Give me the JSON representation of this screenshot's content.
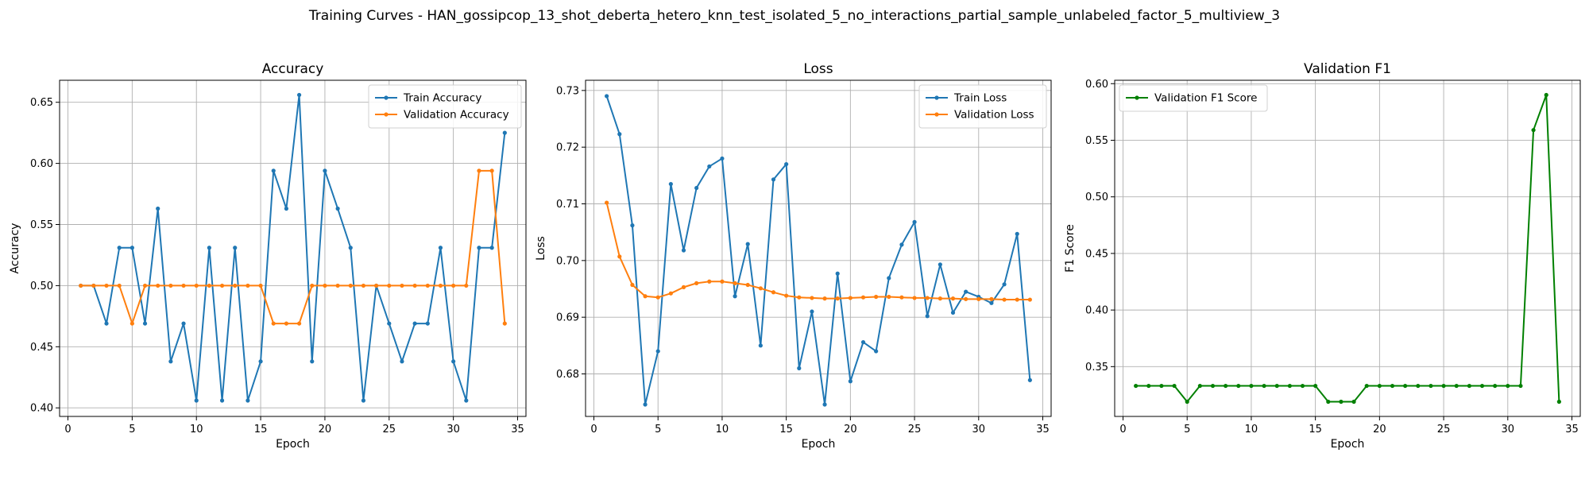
{
  "figure": {
    "suptitle": "Training Curves - HAN_gossipcop_13_shot_deberta_hetero_knn_test_isolated_5_no_interactions_partial_sample_unlabeled_factor_5_multiview_3"
  },
  "colors": {
    "blue": "#1f77b4",
    "orange": "#ff7f0e",
    "green": "#008000",
    "grid": "#b0b0b0"
  },
  "chart_data": [
    {
      "id": "accuracy",
      "type": "line",
      "title": "Accuracy",
      "xlabel": "Epoch",
      "ylabel": "Accuracy",
      "xlim": [
        -0.65,
        35.65
      ],
      "ylim": [
        0.393,
        0.668
      ],
      "xticks": [
        0,
        5,
        10,
        15,
        20,
        25,
        30,
        35
      ],
      "yticks": [
        0.4,
        0.45,
        0.5,
        0.55,
        0.6,
        0.65
      ],
      "ytick_labels": [
        "0.40",
        "0.45",
        "0.50",
        "0.55",
        "0.60",
        "0.65"
      ],
      "grid": true,
      "legend": "upper-right",
      "x": [
        1,
        2,
        3,
        4,
        5,
        6,
        7,
        8,
        9,
        10,
        11,
        12,
        13,
        14,
        15,
        16,
        17,
        18,
        19,
        20,
        21,
        22,
        23,
        24,
        25,
        26,
        27,
        28,
        29,
        30,
        31,
        32,
        33,
        34
      ],
      "series": [
        {
          "name": "Train Accuracy",
          "color": "#1f77b4",
          "values": [
            0.5,
            0.5,
            0.469,
            0.531,
            0.531,
            0.469,
            0.563,
            0.438,
            0.469,
            0.406,
            0.531,
            0.406,
            0.531,
            0.406,
            0.438,
            0.594,
            0.563,
            0.656,
            0.438,
            0.594,
            0.563,
            0.531,
            0.406,
            0.5,
            0.469,
            0.438,
            0.469,
            0.469,
            0.531,
            0.438,
            0.406,
            0.531,
            0.531,
            0.625
          ]
        },
        {
          "name": "Validation Accuracy",
          "color": "#ff7f0e",
          "values": [
            0.5,
            0.5,
            0.5,
            0.5,
            0.469,
            0.5,
            0.5,
            0.5,
            0.5,
            0.5,
            0.5,
            0.5,
            0.5,
            0.5,
            0.5,
            0.469,
            0.469,
            0.469,
            0.5,
            0.5,
            0.5,
            0.5,
            0.5,
            0.5,
            0.5,
            0.5,
            0.5,
            0.5,
            0.5,
            0.5,
            0.5,
            0.594,
            0.594,
            0.469
          ]
        }
      ]
    },
    {
      "id": "loss",
      "type": "line",
      "title": "Loss",
      "xlabel": "Epoch",
      "ylabel": "Loss",
      "xlim": [
        -0.65,
        35.65
      ],
      "ylim": [
        0.6725,
        0.7318
      ],
      "xticks": [
        0,
        5,
        10,
        15,
        20,
        25,
        30,
        35
      ],
      "yticks": [
        0.68,
        0.69,
        0.7,
        0.71,
        0.72,
        0.73
      ],
      "ytick_labels": [
        "0.68",
        "0.69",
        "0.70",
        "0.71",
        "0.72",
        "0.73"
      ],
      "grid": true,
      "legend": "upper-right",
      "x": [
        1,
        2,
        3,
        4,
        5,
        6,
        7,
        8,
        9,
        10,
        11,
        12,
        13,
        14,
        15,
        16,
        17,
        18,
        19,
        20,
        21,
        22,
        23,
        24,
        25,
        26,
        27,
        28,
        29,
        30,
        31,
        32,
        33,
        34
      ],
      "series": [
        {
          "name": "Train Loss",
          "color": "#1f77b4",
          "values": [
            0.729,
            0.7223,
            0.7062,
            0.6746,
            0.684,
            0.7135,
            0.7018,
            0.7128,
            0.7166,
            0.718,
            0.6937,
            0.7029,
            0.685,
            0.7143,
            0.717,
            0.681,
            0.691,
            0.6746,
            0.6977,
            0.6787,
            0.6856,
            0.684,
            0.6969,
            0.7028,
            0.7068,
            0.6902,
            0.6993,
            0.6908,
            0.6945,
            0.6936,
            0.6925,
            0.6958,
            0.7047,
            0.6789
          ]
        },
        {
          "name": "Validation Loss",
          "color": "#ff7f0e",
          "values": [
            0.7102,
            0.7007,
            0.6957,
            0.6937,
            0.6935,
            0.6942,
            0.6953,
            0.696,
            0.6963,
            0.6963,
            0.696,
            0.6957,
            0.6951,
            0.6944,
            0.6938,
            0.6935,
            0.6934,
            0.6933,
            0.6933,
            0.6934,
            0.6935,
            0.6936,
            0.6936,
            0.6935,
            0.6934,
            0.6934,
            0.6933,
            0.6933,
            0.6932,
            0.6932,
            0.6932,
            0.6931,
            0.6931,
            0.6931
          ]
        }
      ]
    },
    {
      "id": "f1",
      "type": "line",
      "title": "Validation F1",
      "xlabel": "Epoch",
      "ylabel": "F1 Score",
      "xlim": [
        -0.65,
        35.65
      ],
      "ylim": [
        0.306,
        0.603
      ],
      "xticks": [
        0,
        5,
        10,
        15,
        20,
        25,
        30,
        35
      ],
      "yticks": [
        0.35,
        0.4,
        0.45,
        0.5,
        0.55,
        0.6
      ],
      "ytick_labels": [
        "0.35",
        "0.40",
        "0.45",
        "0.50",
        "0.55",
        "0.60"
      ],
      "grid": true,
      "legend": "upper-left",
      "x": [
        1,
        2,
        3,
        4,
        5,
        6,
        7,
        8,
        9,
        10,
        11,
        12,
        13,
        14,
        15,
        16,
        17,
        18,
        19,
        20,
        21,
        22,
        23,
        24,
        25,
        26,
        27,
        28,
        29,
        30,
        31,
        32,
        33,
        34
      ],
      "series": [
        {
          "name": "Validation F1 Score",
          "color": "#008000",
          "values": [
            0.333,
            0.333,
            0.333,
            0.333,
            0.319,
            0.333,
            0.333,
            0.333,
            0.333,
            0.333,
            0.333,
            0.333,
            0.333,
            0.333,
            0.333,
            0.319,
            0.319,
            0.319,
            0.333,
            0.333,
            0.333,
            0.333,
            0.333,
            0.333,
            0.333,
            0.333,
            0.333,
            0.333,
            0.333,
            0.333,
            0.333,
            0.559,
            0.59,
            0.319
          ]
        }
      ]
    }
  ]
}
